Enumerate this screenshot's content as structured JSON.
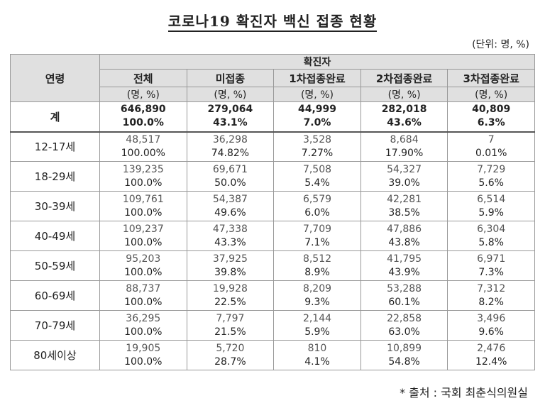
{
  "title": "코로나19 확진자 백신 접종 현황",
  "unit": "(단위: 명, %)",
  "header": {
    "age": "연령",
    "group": "확진자",
    "columns": [
      {
        "label": "전체",
        "sub": "(명, %)"
      },
      {
        "label": "미접종",
        "sub": "(명, %)"
      },
      {
        "label": "1차접종완료",
        "sub": "(명, %)"
      },
      {
        "label": "2차접종완료",
        "sub": "(명, %)"
      },
      {
        "label": "3차접종완료",
        "sub": "(명, %)"
      }
    ]
  },
  "rows": [
    {
      "age": "계",
      "counts": [
        "646,890",
        "279,064",
        "44,999",
        "282,018",
        "40,809"
      ],
      "pcts": [
        "100.0%",
        "43.1%",
        "7.0%",
        "43.6%",
        "6.3%"
      ]
    },
    {
      "age": "12-17세",
      "counts": [
        "48,517",
        "36,298",
        "3,528",
        "8,684",
        "7"
      ],
      "pcts": [
        "100.00%",
        "74.82%",
        "7.27%",
        "17.90%",
        "0.01%"
      ]
    },
    {
      "age": "18-29세",
      "counts": [
        "139,235",
        "69,671",
        "7,508",
        "54,327",
        "7,729"
      ],
      "pcts": [
        "100.0%",
        "50.0%",
        "5.4%",
        "39.0%",
        "5.6%"
      ]
    },
    {
      "age": "30-39세",
      "counts": [
        "109,761",
        "54,387",
        "6,579",
        "42,281",
        "6,514"
      ],
      "pcts": [
        "100.0%",
        "49.6%",
        "6.0%",
        "38.5%",
        "5.9%"
      ]
    },
    {
      "age": "40-49세",
      "counts": [
        "109,237",
        "47,338",
        "7,709",
        "47,886",
        "6,304"
      ],
      "pcts": [
        "100.0%",
        "43.3%",
        "7.1%",
        "43.8%",
        "5.8%"
      ]
    },
    {
      "age": "50-59세",
      "counts": [
        "95,203",
        "37,925",
        "8,512",
        "41,795",
        "6,971"
      ],
      "pcts": [
        "100.0%",
        "39.8%",
        "8.9%",
        "43.9%",
        "7.3%"
      ]
    },
    {
      "age": "60-69세",
      "counts": [
        "88,737",
        "19,928",
        "8,209",
        "53,288",
        "7,312"
      ],
      "pcts": [
        "100.0%",
        "22.5%",
        "9.3%",
        "60.1%",
        "8.2%"
      ]
    },
    {
      "age": "70-79세",
      "counts": [
        "36,295",
        "7,797",
        "2,144",
        "22,858",
        "3,496"
      ],
      "pcts": [
        "100.0%",
        "21.5%",
        "5.9%",
        "63.0%",
        "9.6%"
      ]
    },
    {
      "age": "80세이상",
      "counts": [
        "19,905",
        "5,720",
        "810",
        "10,899",
        "2,476"
      ],
      "pcts": [
        "100.0%",
        "28.7%",
        "4.1%",
        "54.8%",
        "12.4%"
      ]
    }
  ],
  "note": "* 출처 : 국회 최춘식의원실"
}
